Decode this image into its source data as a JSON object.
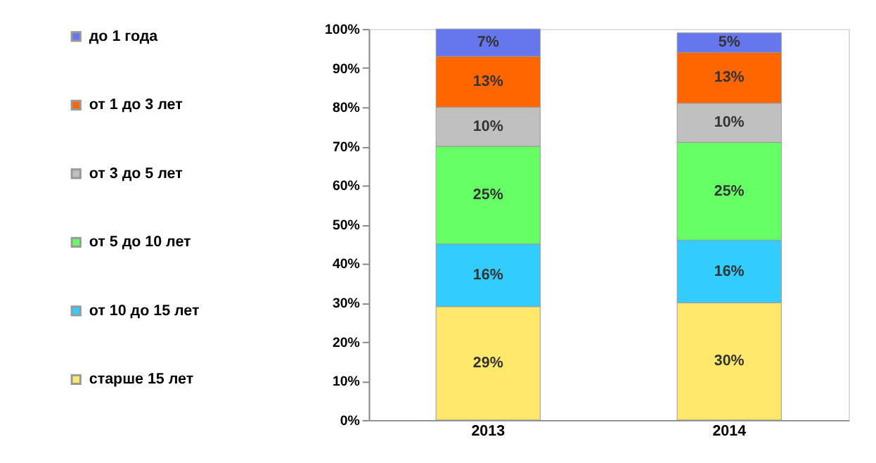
{
  "chart_data": {
    "type": "bar",
    "stacked": true,
    "categories": [
      "2013",
      "2014"
    ],
    "series": [
      {
        "name": "старше 15 лет",
        "color": "#ffe86b",
        "values": [
          29,
          30
        ],
        "value_labels": [
          "29%",
          "30%"
        ]
      },
      {
        "name": "от 10 до 15 лет",
        "color": "#33ccff",
        "values": [
          16,
          16
        ],
        "value_labels": [
          "16%",
          "16%"
        ]
      },
      {
        "name": "от 5 до 10 лет",
        "color": "#66ff66",
        "values": [
          25,
          25
        ],
        "value_labels": [
          "25%",
          "25%"
        ]
      },
      {
        "name": "от 3 до 5 лет",
        "color": "#c0c0c0",
        "values": [
          10,
          10
        ],
        "value_labels": [
          "10%",
          "10%"
        ]
      },
      {
        "name": "от 1 до 3 лет",
        "color": "#ff6600",
        "values": [
          13,
          13
        ],
        "value_labels": [
          "13%",
          "13%"
        ]
      },
      {
        "name": "до 1 года",
        "color": "#6677ee",
        "values": [
          7,
          5
        ],
        "value_labels": [
          "7%",
          "5%"
        ]
      }
    ],
    "ylim": [
      0,
      100
    ],
    "yticks": [
      {
        "value": 0,
        "label": "0%"
      },
      {
        "value": 10,
        "label": "10%"
      },
      {
        "value": 20,
        "label": "20%"
      },
      {
        "value": 30,
        "label": "30%"
      },
      {
        "value": 40,
        "label": "40%"
      },
      {
        "value": 50,
        "label": "50%"
      },
      {
        "value": 60,
        "label": "60%"
      },
      {
        "value": 70,
        "label": "70%"
      },
      {
        "value": 80,
        "label": "80%"
      },
      {
        "value": 90,
        "label": "90%"
      },
      {
        "value": 100,
        "label": "100%"
      }
    ],
    "legend": "left",
    "grid": false
  }
}
